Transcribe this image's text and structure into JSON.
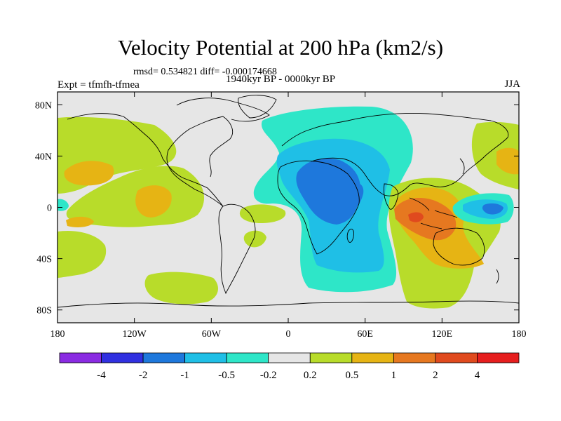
{
  "title": "Velocity Potential at 200 hPa (km2/s)",
  "stats": "rmsd= 0.534821  diff= -0.000174668",
  "experiment": "Expt = tfmfh-tfmea",
  "period": "1940kyr BP - 0000kyr BP",
  "season": "JJA",
  "map": {
    "projection": "cylindrical-equidistant",
    "lon_range": [
      -180,
      180
    ],
    "lat_range": [
      -90,
      90
    ],
    "lon_ticks": [
      {
        "value": -180,
        "label": "180"
      },
      {
        "value": -120,
        "label": "120W"
      },
      {
        "value": -60,
        "label": "60W"
      },
      {
        "value": 0,
        "label": "0"
      },
      {
        "value": 60,
        "label": "60E"
      },
      {
        "value": 120,
        "label": "120E"
      },
      {
        "value": 180,
        "label": "180"
      }
    ],
    "lat_ticks": [
      {
        "value": 80,
        "label": "80N"
      },
      {
        "value": 40,
        "label": "40N"
      },
      {
        "value": 0,
        "label": "0"
      },
      {
        "value": -40,
        "label": "40S"
      },
      {
        "value": -80,
        "label": "80S"
      }
    ]
  },
  "colorbar": {
    "levels": [
      "-4",
      "-2",
      "-1",
      "-0.5",
      "-0.2",
      "0.2",
      "0.5",
      "1",
      "2",
      "4"
    ],
    "colors": [
      "#8a2be2",
      "#3030e0",
      "#1e78dc",
      "#1fbfe6",
      "#2ee6c8",
      "#e6e6e6",
      "#b8dc2a",
      "#e6b414",
      "#e67820",
      "#e04a1e",
      "#e61e1e"
    ]
  },
  "colors": {
    "neutral": "#e6e6e6",
    "coast": "#000000"
  }
}
